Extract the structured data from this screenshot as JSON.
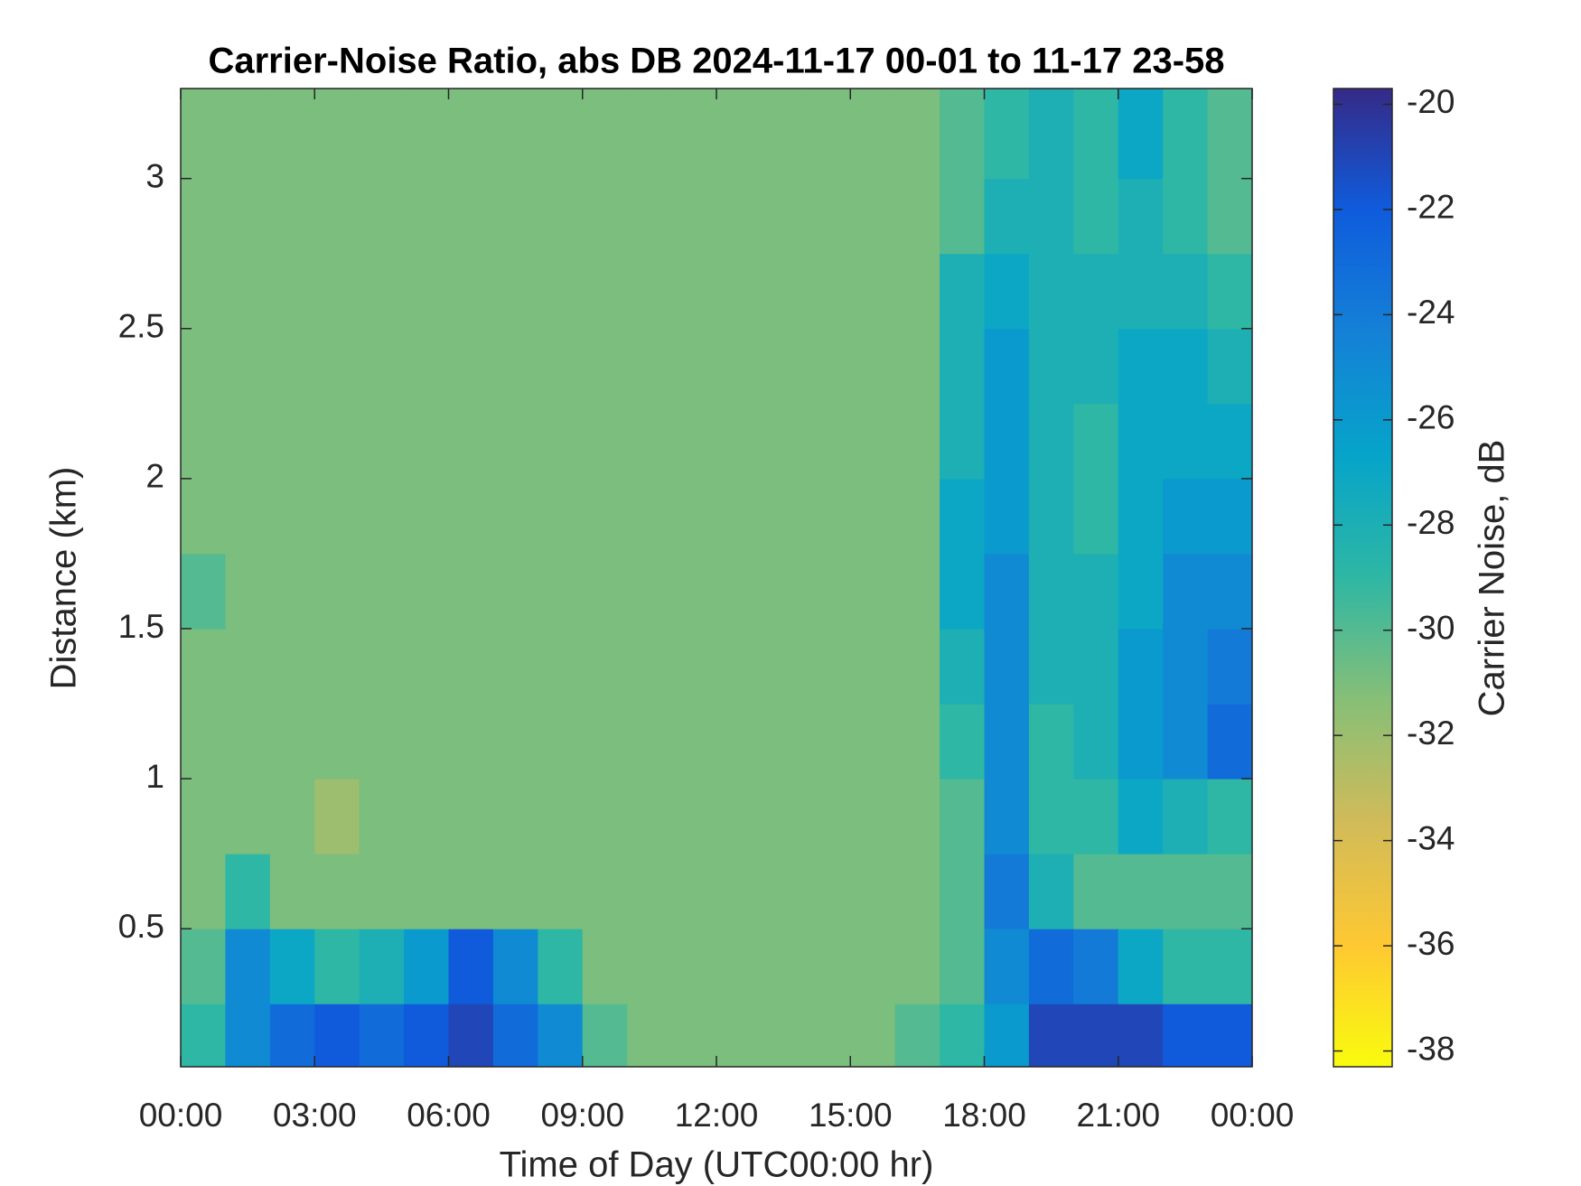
{
  "chart_data": {
    "type": "heatmap",
    "title": "Carrier-Noise Ratio, abs DB 2024-11-17 00-01 to 11-17 23-58",
    "x_label": "Time of Day (UTC00:00 hr)",
    "y_label": "Distance (km)",
    "colorbar_label": "Carrier Noise, dB",
    "xlim": [
      0,
      24
    ],
    "ylim": [
      0.04,
      3.3
    ],
    "xticks": [
      {
        "value": 0,
        "label": "00:00"
      },
      {
        "value": 3,
        "label": "03:00"
      },
      {
        "value": 6,
        "label": "06:00"
      },
      {
        "value": 9,
        "label": "09:00"
      },
      {
        "value": 12,
        "label": "12:00"
      },
      {
        "value": 15,
        "label": "15:00"
      },
      {
        "value": 18,
        "label": "18:00"
      },
      {
        "value": 21,
        "label": "21:00"
      },
      {
        "value": 24,
        "label": "00:00"
      }
    ],
    "yticks": [
      0.5,
      1,
      1.5,
      2,
      2.5,
      3
    ],
    "x_edges": [
      0,
      1,
      2,
      3,
      4,
      5,
      6,
      7,
      8,
      9,
      10,
      11,
      12,
      13,
      14,
      15,
      16,
      17,
      18,
      19,
      20,
      21,
      22,
      23,
      24
    ],
    "y_edges": [
      0.04,
      0.25,
      0.5,
      0.75,
      1,
      1.25,
      1.5,
      1.75,
      2,
      2.25,
      2.5,
      2.75,
      3,
      3.3
    ],
    "z": [
      [
        -29,
        -25,
        -23,
        -22,
        -23,
        -22,
        -21,
        -23,
        -25,
        -30,
        -31,
        -31,
        -31,
        -31,
        -31,
        -31,
        -30,
        -29,
        -26,
        -21,
        -21,
        -21,
        -22,
        -22
      ],
      [
        -30,
        -25,
        -27,
        -29,
        -28,
        -26,
        -22,
        -25,
        -29,
        -31,
        -31,
        -31,
        -31,
        -31,
        -31,
        -31,
        -31,
        -30,
        -25,
        -23,
        -24,
        -27,
        -29,
        -29
      ],
      [
        -31,
        -29,
        -31,
        -31,
        -31,
        -31,
        -31,
        -31,
        -31,
        -31,
        -31,
        -31,
        -31,
        -31,
        -31,
        -31,
        -31,
        -30,
        -24,
        -28,
        -30,
        -30,
        -30,
        -30
      ],
      [
        -31,
        -31,
        -31,
        -32,
        -31,
        -31,
        -31,
        -31,
        -31,
        -31,
        -31,
        -31,
        -31,
        -31,
        -31,
        -31,
        -31,
        -30,
        -25,
        -29,
        -29,
        -27,
        -28,
        -29
      ],
      [
        -31,
        -31,
        -31,
        -31,
        -31,
        -31,
        -31,
        -31,
        -31,
        -31,
        -31,
        -31,
        -31,
        -31,
        -31,
        -31,
        -31,
        -29,
        -25,
        -29,
        -28,
        -26,
        -25,
        -23
      ],
      [
        -31,
        -31,
        -31,
        -31,
        -31,
        -31,
        -31,
        -31,
        -31,
        -31,
        -31,
        -31,
        -31,
        -31,
        -31,
        -31,
        -31,
        -28,
        -25,
        -28,
        -28,
        -26,
        -25,
        -24
      ],
      [
        -30,
        -31,
        -31,
        -31,
        -31,
        -31,
        -31,
        -31,
        -31,
        -31,
        -31,
        -31,
        -31,
        -31,
        -31,
        -31,
        -31,
        -27,
        -25,
        -28,
        -28,
        -27,
        -25,
        -25
      ],
      [
        -31,
        -31,
        -31,
        -31,
        -31,
        -31,
        -31,
        -31,
        -31,
        -31,
        -31,
        -31,
        -31,
        -31,
        -31,
        -31,
        -31,
        -27,
        -26,
        -28,
        -29,
        -27,
        -26,
        -26
      ],
      [
        -31,
        -31,
        -31,
        -31,
        -31,
        -31,
        -31,
        -31,
        -31,
        -31,
        -31,
        -31,
        -31,
        -31,
        -31,
        -31,
        -31,
        -28,
        -26,
        -28,
        -29,
        -27,
        -27,
        -27
      ],
      [
        -31,
        -31,
        -31,
        -31,
        -31,
        -31,
        -31,
        -31,
        -31,
        -31,
        -31,
        -31,
        -31,
        -31,
        -31,
        -31,
        -31,
        -28,
        -26,
        -28,
        -28,
        -27,
        -27,
        -28
      ],
      [
        -31,
        -31,
        -31,
        -31,
        -31,
        -31,
        -31,
        -31,
        -31,
        -31,
        -31,
        -31,
        -31,
        -31,
        -31,
        -31,
        -31,
        -28,
        -27,
        -28,
        -28,
        -28,
        -28,
        -29
      ],
      [
        -31,
        -31,
        -31,
        -31,
        -31,
        -31,
        -31,
        -31,
        -31,
        -31,
        -31,
        -31,
        -31,
        -31,
        -31,
        -31,
        -31,
        -30,
        -28,
        -28,
        -29,
        -28,
        -29,
        -30
      ],
      [
        -31,
        -31,
        -31,
        -31,
        -31,
        -31,
        -31,
        -31,
        -31,
        -31,
        -31,
        -31,
        -31,
        -31,
        -31,
        -31,
        -31,
        -30,
        -29,
        -28,
        -29,
        -27,
        -29,
        -30
      ]
    ],
    "clim": [
      -38.3,
      -19.7
    ],
    "cticks": [
      -38,
      -36,
      -34,
      -32,
      -30,
      -28,
      -26,
      -24,
      -22,
      -20
    ],
    "colormap": [
      "#f9fb0e",
      "#fec832",
      "#d1bb59",
      "#87bf77",
      "#2eb7a4",
      "#06a4ca",
      "#1481d6",
      "#0f5cdd",
      "#352a87"
    ]
  }
}
